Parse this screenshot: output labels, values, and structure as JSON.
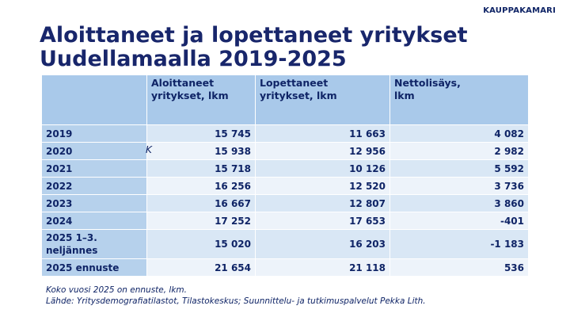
{
  "header": {
    "brand": "KAUPPAKAMARI",
    "title": [
      "Aloittaneet ja lopettaneet yritykset",
      "Uudellamaalla 2019-2025"
    ]
  },
  "table": {
    "columns": [
      "Aloittaneet yritykset, lkm",
      "Lopettaneet yritykset, lkm",
      "Nettolisäys, lkm"
    ],
    "rows": [
      [
        "2019",
        "15 745",
        "11 663",
        "4 082"
      ],
      [
        "2020",
        "15 938",
        "12 956",
        "2 982"
      ],
      [
        "2021",
        "15 718",
        "10 126",
        "5 592"
      ],
      [
        "2022",
        "16 256",
        "12 520",
        "3 736"
      ],
      [
        "2023",
        "16 667",
        "12 807",
        "3 860"
      ],
      [
        "2024",
        "17 252",
        "17 653",
        "-401"
      ],
      [
        "2025 1–3. neljännes",
        "15 020",
        "16 203",
        "-1 183"
      ],
      [
        "2025 ennuste",
        "21 654",
        "21 118",
        "536"
      ]
    ]
  },
  "annotation": "K",
  "notes": [
    "Koko vuosi 2025 on ennuste, lkm.",
    "Lähde: Yritysdemografiatilastot, Tilastokeskus; Suunnittelu- ja tutkimuspalvelut Pekka Lith."
  ]
}
